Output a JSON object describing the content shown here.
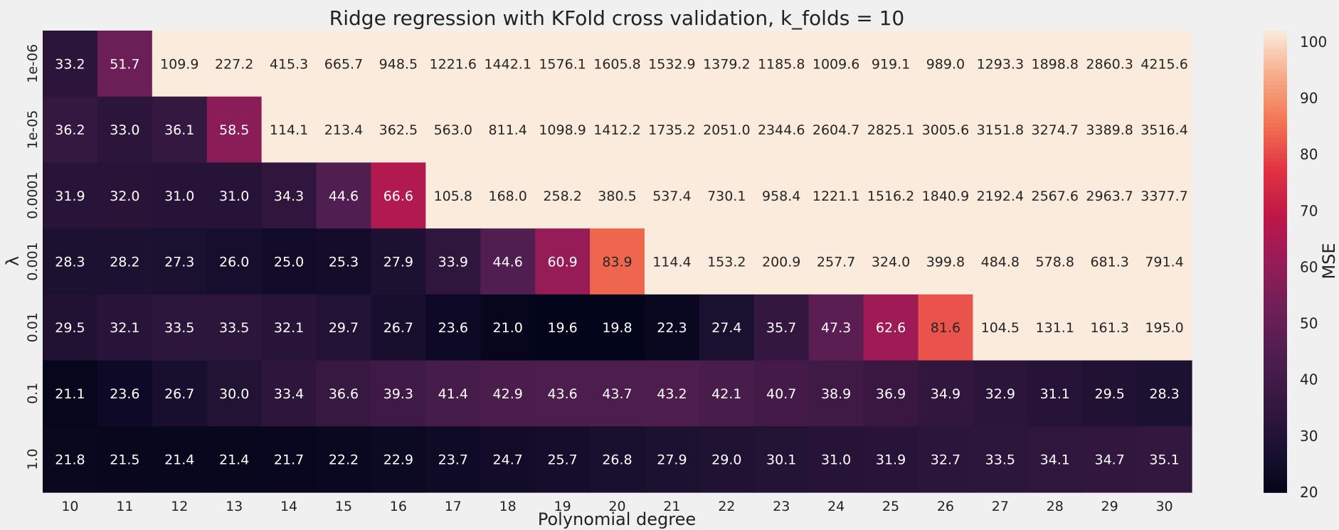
{
  "chart_data": {
    "type": "heatmap",
    "title": "Ridge regression with KFold cross validation, k_folds = 10",
    "xlabel": "Polynomial degree",
    "ylabel": "λ",
    "colorbar_label": "MSE",
    "x": [
      "10",
      "11",
      "12",
      "13",
      "14",
      "15",
      "16",
      "17",
      "18",
      "19",
      "20",
      "21",
      "22",
      "23",
      "24",
      "25",
      "26",
      "27",
      "28",
      "29",
      "30"
    ],
    "y": [
      "1e-06",
      "1e-05",
      "0.0001",
      "0.001",
      "0.01",
      "0.1",
      "1.0"
    ],
    "values": [
      [
        33.2,
        51.7,
        109.9,
        227.2,
        415.3,
        665.7,
        948.5,
        1221.6,
        1442.1,
        1576.1,
        1605.8,
        1532.9,
        1379.2,
        1185.8,
        1009.6,
        919.1,
        989.0,
        1293.3,
        1898.8,
        2860.3,
        4215.6
      ],
      [
        36.2,
        33.0,
        36.1,
        58.5,
        114.1,
        213.4,
        362.5,
        563.0,
        811.4,
        1098.9,
        1412.2,
        1735.2,
        2051.0,
        2344.6,
        2604.7,
        2825.1,
        3005.6,
        3151.8,
        3274.7,
        3389.8,
        3516.4
      ],
      [
        31.9,
        32.0,
        31.0,
        31.0,
        34.3,
        44.6,
        66.6,
        105.8,
        168.0,
        258.2,
        380.5,
        537.4,
        730.1,
        958.4,
        1221.1,
        1516.2,
        1840.9,
        2192.4,
        2567.6,
        2963.7,
        3377.7
      ],
      [
        28.3,
        28.2,
        27.3,
        26.0,
        25.0,
        25.3,
        27.9,
        33.9,
        44.6,
        60.9,
        83.9,
        114.4,
        153.2,
        200.9,
        257.7,
        324.0,
        399.8,
        484.8,
        578.8,
        681.3,
        791.4
      ],
      [
        29.5,
        32.1,
        33.5,
        33.5,
        32.1,
        29.7,
        26.7,
        23.6,
        21.0,
        19.6,
        19.8,
        22.3,
        27.4,
        35.7,
        47.3,
        62.6,
        81.6,
        104.5,
        131.1,
        161.3,
        195.0
      ],
      [
        21.1,
        23.6,
        26.7,
        30.0,
        33.4,
        36.6,
        39.3,
        41.4,
        42.9,
        43.6,
        43.7,
        43.2,
        42.1,
        40.7,
        38.9,
        36.9,
        34.9,
        32.9,
        31.1,
        29.5,
        28.3
      ],
      [
        21.8,
        21.5,
        21.4,
        21.4,
        21.7,
        22.2,
        22.9,
        23.7,
        24.7,
        25.7,
        26.8,
        27.9,
        29.0,
        30.1,
        31.0,
        31.9,
        32.7,
        33.5,
        34.1,
        34.7,
        35.1
      ]
    ],
    "value_format": "%.1f",
    "colorscale": "rocket",
    "vmin": 20,
    "vmax": 102,
    "colorbar_ticks": [
      20,
      30,
      40,
      50,
      60,
      70,
      80,
      90,
      100
    ],
    "grid": false
  }
}
